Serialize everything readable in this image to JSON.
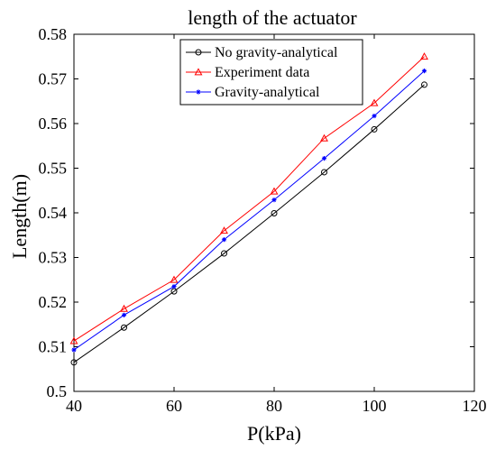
{
  "chart_data": {
    "type": "line",
    "title": "length of the actuator",
    "xlabel": "P(kPa)",
    "ylabel": "Length(m)",
    "xlim": [
      40,
      120
    ],
    "ylim": [
      0.5,
      0.58
    ],
    "xticks": [
      "40",
      "60",
      "80",
      "100",
      "120"
    ],
    "yticks": [
      "0.5",
      "0.51",
      "0.52",
      "0.53",
      "0.54",
      "0.55",
      "0.56",
      "0.57",
      "0.58"
    ],
    "x": [
      40,
      50,
      60,
      70,
      80,
      90,
      100,
      110
    ],
    "grid": false,
    "legend_position": "top-right",
    "series": [
      {
        "name": "No gravity-analytical",
        "color": "#000000",
        "marker": "circle",
        "values": [
          0.5065,
          0.5143,
          0.5224,
          0.5309,
          0.5399,
          0.5491,
          0.5587,
          0.5687
        ]
      },
      {
        "name": "Experiment data",
        "color": "#ff0000",
        "marker": "triangle",
        "values": [
          0.5113,
          0.5185,
          0.525,
          0.536,
          0.5448,
          0.5567,
          0.5646,
          0.575
        ]
      },
      {
        "name": "Gravity-analytical",
        "color": "#0000ff",
        "marker": "asterisk",
        "values": [
          0.5093,
          0.5171,
          0.5235,
          0.534,
          0.5429,
          0.5522,
          0.5617,
          0.5718
        ]
      }
    ]
  }
}
